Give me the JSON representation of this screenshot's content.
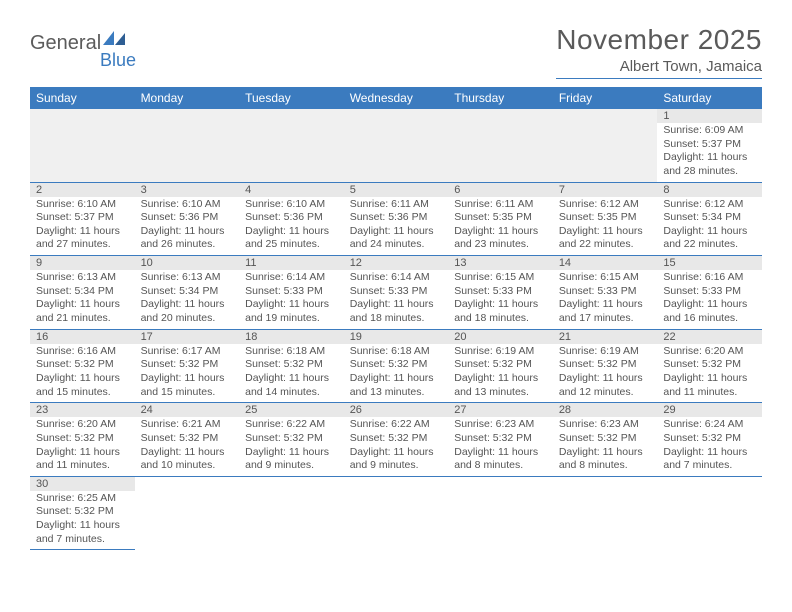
{
  "logo": {
    "text1": "General",
    "text2": "Blue"
  },
  "title": "November 2025",
  "location": "Albert Town, Jamaica",
  "colors": {
    "header_bg": "#3b7bbf",
    "header_text": "#ffffff",
    "daynum_bg": "#e8e8e8",
    "body_text": "#555555",
    "rule": "#3b7bbf"
  },
  "weekdays": [
    "Sunday",
    "Monday",
    "Tuesday",
    "Wednesday",
    "Thursday",
    "Friday",
    "Saturday"
  ],
  "weeks": [
    [
      null,
      null,
      null,
      null,
      null,
      null,
      {
        "n": "1",
        "sr": "6:09 AM",
        "ss": "5:37 PM",
        "dl": "11 hours and 28 minutes."
      }
    ],
    [
      {
        "n": "2",
        "sr": "6:10 AM",
        "ss": "5:37 PM",
        "dl": "11 hours and 27 minutes."
      },
      {
        "n": "3",
        "sr": "6:10 AM",
        "ss": "5:36 PM",
        "dl": "11 hours and 26 minutes."
      },
      {
        "n": "4",
        "sr": "6:10 AM",
        "ss": "5:36 PM",
        "dl": "11 hours and 25 minutes."
      },
      {
        "n": "5",
        "sr": "6:11 AM",
        "ss": "5:36 PM",
        "dl": "11 hours and 24 minutes."
      },
      {
        "n": "6",
        "sr": "6:11 AM",
        "ss": "5:35 PM",
        "dl": "11 hours and 23 minutes."
      },
      {
        "n": "7",
        "sr": "6:12 AM",
        "ss": "5:35 PM",
        "dl": "11 hours and 22 minutes."
      },
      {
        "n": "8",
        "sr": "6:12 AM",
        "ss": "5:34 PM",
        "dl": "11 hours and 22 minutes."
      }
    ],
    [
      {
        "n": "9",
        "sr": "6:13 AM",
        "ss": "5:34 PM",
        "dl": "11 hours and 21 minutes."
      },
      {
        "n": "10",
        "sr": "6:13 AM",
        "ss": "5:34 PM",
        "dl": "11 hours and 20 minutes."
      },
      {
        "n": "11",
        "sr": "6:14 AM",
        "ss": "5:33 PM",
        "dl": "11 hours and 19 minutes."
      },
      {
        "n": "12",
        "sr": "6:14 AM",
        "ss": "5:33 PM",
        "dl": "11 hours and 18 minutes."
      },
      {
        "n": "13",
        "sr": "6:15 AM",
        "ss": "5:33 PM",
        "dl": "11 hours and 18 minutes."
      },
      {
        "n": "14",
        "sr": "6:15 AM",
        "ss": "5:33 PM",
        "dl": "11 hours and 17 minutes."
      },
      {
        "n": "15",
        "sr": "6:16 AM",
        "ss": "5:33 PM",
        "dl": "11 hours and 16 minutes."
      }
    ],
    [
      {
        "n": "16",
        "sr": "6:16 AM",
        "ss": "5:32 PM",
        "dl": "11 hours and 15 minutes."
      },
      {
        "n": "17",
        "sr": "6:17 AM",
        "ss": "5:32 PM",
        "dl": "11 hours and 15 minutes."
      },
      {
        "n": "18",
        "sr": "6:18 AM",
        "ss": "5:32 PM",
        "dl": "11 hours and 14 minutes."
      },
      {
        "n": "19",
        "sr": "6:18 AM",
        "ss": "5:32 PM",
        "dl": "11 hours and 13 minutes."
      },
      {
        "n": "20",
        "sr": "6:19 AM",
        "ss": "5:32 PM",
        "dl": "11 hours and 13 minutes."
      },
      {
        "n": "21",
        "sr": "6:19 AM",
        "ss": "5:32 PM",
        "dl": "11 hours and 12 minutes."
      },
      {
        "n": "22",
        "sr": "6:20 AM",
        "ss": "5:32 PM",
        "dl": "11 hours and 11 minutes."
      }
    ],
    [
      {
        "n": "23",
        "sr": "6:20 AM",
        "ss": "5:32 PM",
        "dl": "11 hours and 11 minutes."
      },
      {
        "n": "24",
        "sr": "6:21 AM",
        "ss": "5:32 PM",
        "dl": "11 hours and 10 minutes."
      },
      {
        "n": "25",
        "sr": "6:22 AM",
        "ss": "5:32 PM",
        "dl": "11 hours and 9 minutes."
      },
      {
        "n": "26",
        "sr": "6:22 AM",
        "ss": "5:32 PM",
        "dl": "11 hours and 9 minutes."
      },
      {
        "n": "27",
        "sr": "6:23 AM",
        "ss": "5:32 PM",
        "dl": "11 hours and 8 minutes."
      },
      {
        "n": "28",
        "sr": "6:23 AM",
        "ss": "5:32 PM",
        "dl": "11 hours and 8 minutes."
      },
      {
        "n": "29",
        "sr": "6:24 AM",
        "ss": "5:32 PM",
        "dl": "11 hours and 7 minutes."
      }
    ],
    [
      {
        "n": "30",
        "sr": "6:25 AM",
        "ss": "5:32 PM",
        "dl": "11 hours and 7 minutes."
      },
      null,
      null,
      null,
      null,
      null,
      null
    ]
  ],
  "labels": {
    "sunrise": "Sunrise:",
    "sunset": "Sunset:",
    "daylight": "Daylight:"
  }
}
